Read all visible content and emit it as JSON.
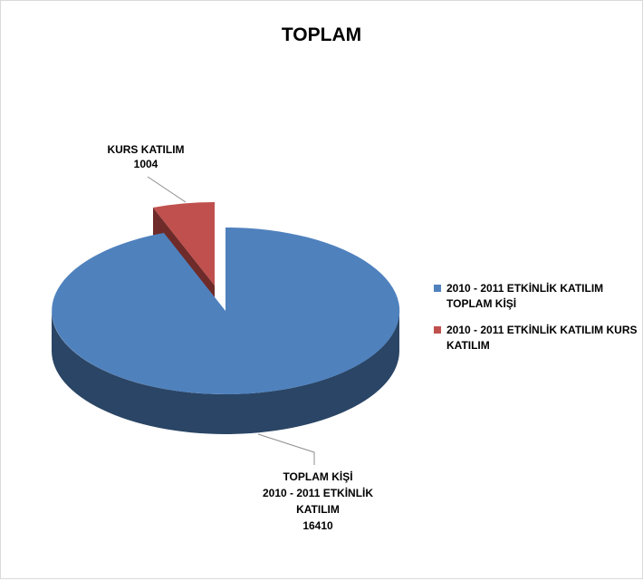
{
  "chart_data": {
    "type": "pie",
    "style": "3d-exploded",
    "title": "TOPLAM",
    "slices": [
      {
        "name": "2010 - 2011 ETKİNLİK KATILIM TOPLAM KİŞİ",
        "value": 16410,
        "label_lines": [
          "TOPLAM KİŞİ",
          "2010 - 2011 ETKİNLİK",
          "KATILIM",
          "16410"
        ],
        "color": "#4F81BD",
        "side_color": "#2A4565"
      },
      {
        "name": "2010 - 2011 ETKİNLİK KATILIM KURS KATILIM",
        "value": 1004,
        "label_lines": [
          "KURS KATILIM",
          "1004"
        ],
        "color": "#C0504D",
        "side_color": "#6E2B29"
      }
    ],
    "legend_position": "right"
  }
}
